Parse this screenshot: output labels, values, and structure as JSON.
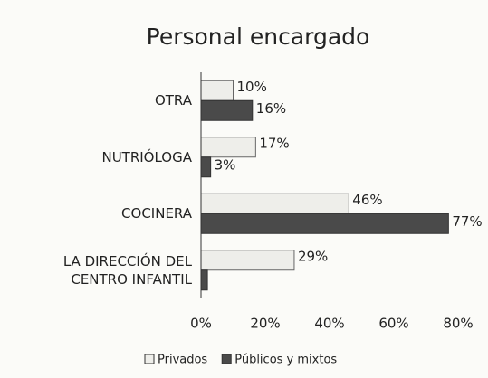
{
  "chart_data": {
    "type": "hbar",
    "title": "Personal encargado",
    "categories": [
      "OTRA",
      "NUTRIÓLOGA",
      "COCINERA",
      "LA DIRECCIÓN DEL CENTRO INFANTIL"
    ],
    "series": [
      {
        "name": "Privados",
        "color": "#eeeeea",
        "values": [
          10,
          17,
          46,
          29
        ],
        "value_labels": [
          "10%",
          "17%",
          "46%",
          "29%"
        ]
      },
      {
        "name": "Públicos y mixtos",
        "color": "#4a4a4a",
        "values": [
          16,
          3,
          77,
          2
        ],
        "value_labels": [
          "16%",
          "3%",
          "77%",
          null
        ]
      }
    ],
    "xlim": [
      0,
      80
    ],
    "xticks": [
      {
        "value": 0,
        "label": "0%"
      },
      {
        "value": 20,
        "label": "20%"
      },
      {
        "value": 40,
        "label": "40%"
      },
      {
        "value": 60,
        "label": "60%"
      },
      {
        "value": 80,
        "label": "80%"
      }
    ],
    "legend": "bottom"
  }
}
